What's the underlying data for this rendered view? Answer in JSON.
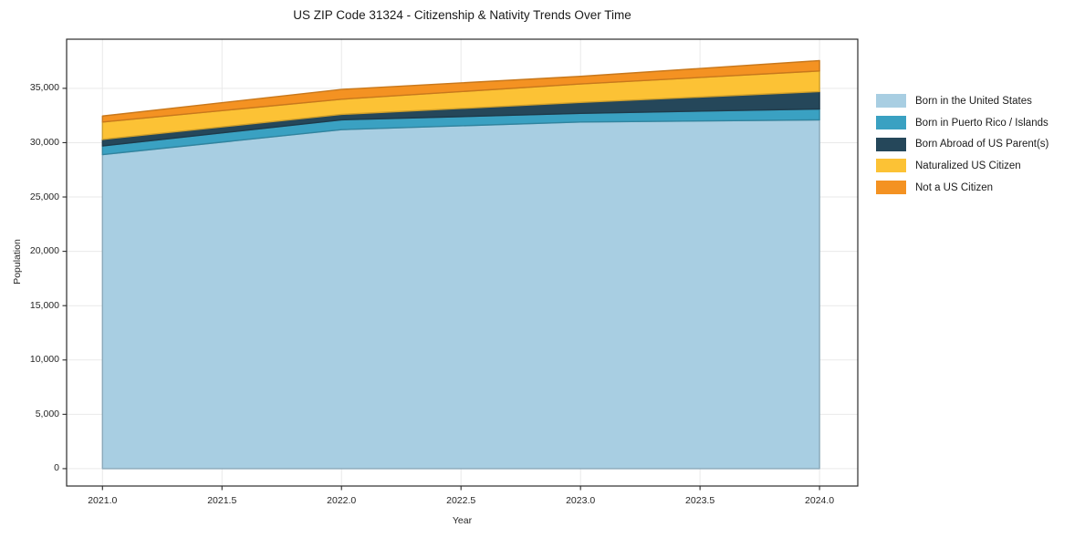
{
  "title": "US ZIP Code 31324 - Citizenship & Nativity Trends Over Time",
  "chart_data": {
    "type": "area",
    "stacked": true,
    "title": "US ZIP Code 31324 - Citizenship & Nativity Trends Over Time",
    "xlabel": "Year",
    "ylabel": "Population",
    "x": [
      2021,
      2022,
      2023,
      2024
    ],
    "series": [
      {
        "name": "Born in the United States",
        "color": "#A8CEE2",
        "values": [
          28900,
          31200,
          31900,
          32100
        ]
      },
      {
        "name": "Born in Puerto Rico / Islands",
        "color": "#3AA1C2",
        "values": [
          800,
          900,
          800,
          1000
        ]
      },
      {
        "name": "Born Abroad of US Parent(s)",
        "color": "#25475A",
        "values": [
          600,
          500,
          1000,
          1600
        ]
      },
      {
        "name": "Naturalized US Citizen",
        "color": "#FCC235",
        "values": [
          1600,
          1400,
          1700,
          1900
        ]
      },
      {
        "name": "Not a US Citizen",
        "color": "#F49222",
        "values": [
          550,
          900,
          700,
          950
        ]
      }
    ],
    "totals": [
      32450,
      34900,
      36100,
      37550
    ],
    "x_tick_labels": [
      "2021.0",
      "2021.5",
      "2022.0",
      "2022.5",
      "2023.0",
      "2023.5",
      "2024.0"
    ],
    "x_tick_values": [
      2021.0,
      2021.5,
      2022.0,
      2022.5,
      2023.0,
      2023.5,
      2024.0
    ],
    "y_tick_labels": [
      "0",
      "5,000",
      "10,000",
      "15,000",
      "20,000",
      "25,000",
      "30,000",
      "35,000"
    ],
    "y_tick_values": [
      0,
      5000,
      10000,
      15000,
      20000,
      25000,
      30000,
      35000
    ],
    "xlim": [
      2020.85,
      2024.16
    ],
    "ylim": [
      -1600,
      39520
    ],
    "grid": true,
    "grid_color": "#e9e9e9",
    "spine_color": "#2b2b2b",
    "legend_position": "right",
    "background_color": "#ffffff"
  }
}
